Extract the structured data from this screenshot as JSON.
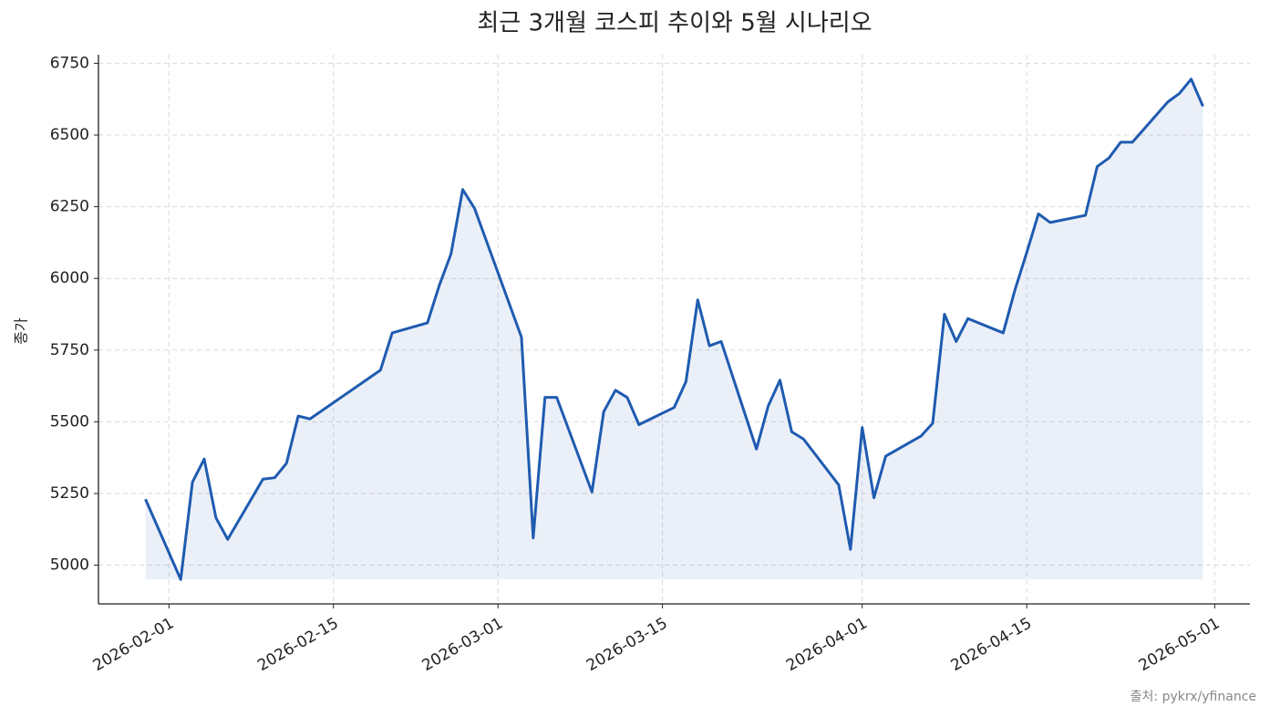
{
  "chart_data": {
    "type": "line",
    "title": "최근 3개월 코스피 추이와 5월 시나리오",
    "y_label": "종가",
    "source": "출처: pykrx/yfinance",
    "x": [
      "2026-01-30",
      "2026-02-02",
      "2026-02-03",
      "2026-02-04",
      "2026-02-05",
      "2026-02-06",
      "2026-02-09",
      "2026-02-10",
      "2026-02-11",
      "2026-02-12",
      "2026-02-13",
      "2026-02-19",
      "2026-02-20",
      "2026-02-23",
      "2026-02-24",
      "2026-02-25",
      "2026-02-26",
      "2026-02-27",
      "2026-03-03",
      "2026-03-04",
      "2026-03-05",
      "2026-03-06",
      "2026-03-09",
      "2026-03-10",
      "2026-03-11",
      "2026-03-12",
      "2026-03-13",
      "2026-03-16",
      "2026-03-17",
      "2026-03-18",
      "2026-03-19",
      "2026-03-20",
      "2026-03-23",
      "2026-03-24",
      "2026-03-25",
      "2026-03-26",
      "2026-03-27",
      "2026-03-30",
      "2026-03-31",
      "2026-04-01",
      "2026-04-02",
      "2026-04-03",
      "2026-04-06",
      "2026-04-07",
      "2026-04-08",
      "2026-04-09",
      "2026-04-10",
      "2026-04-13",
      "2026-04-14",
      "2026-04-15",
      "2026-04-16",
      "2026-04-17",
      "2026-04-20",
      "2026-04-21",
      "2026-04-22",
      "2026-04-23",
      "2026-04-24",
      "2026-04-27",
      "2026-04-28",
      "2026-04-29",
      "2026-04-30"
    ],
    "series": [
      {
        "name": "종가",
        "color": "#1f5bb0",
        "values": [
          5230,
          4950,
          5290,
          5370,
          5165,
          5090,
          5300,
          5305,
          5355,
          5520,
          5510,
          5680,
          5810,
          5845,
          5975,
          6085,
          6310,
          6245,
          5795,
          5095,
          5585,
          5585,
          5255,
          5535,
          5610,
          5585,
          5490,
          5550,
          5640,
          5925,
          5765,
          5780,
          5405,
          5555,
          5645,
          5465,
          5440,
          5280,
          5055,
          5480,
          5235,
          5380,
          5450,
          5495,
          5875,
          5780,
          5860,
          5810,
          5960,
          6090,
          6225,
          6195,
          6220,
          6390,
          6420,
          6475,
          6475,
          6615,
          6645,
          6695,
          6600
        ]
      }
    ],
    "xlim": [
      "2026-01-26",
      "2026-05-04"
    ],
    "xticks": [
      "2026-02-01",
      "2026-02-15",
      "2026-03-01",
      "2026-03-15",
      "2026-04-01",
      "2026-04-15",
      "2026-05-01"
    ],
    "ylim": [
      4865,
      6780
    ],
    "yticks": [
      5000,
      5250,
      5500,
      5750,
      6000,
      6250,
      6500,
      6750
    ],
    "grid": true,
    "fill_under": true
  }
}
